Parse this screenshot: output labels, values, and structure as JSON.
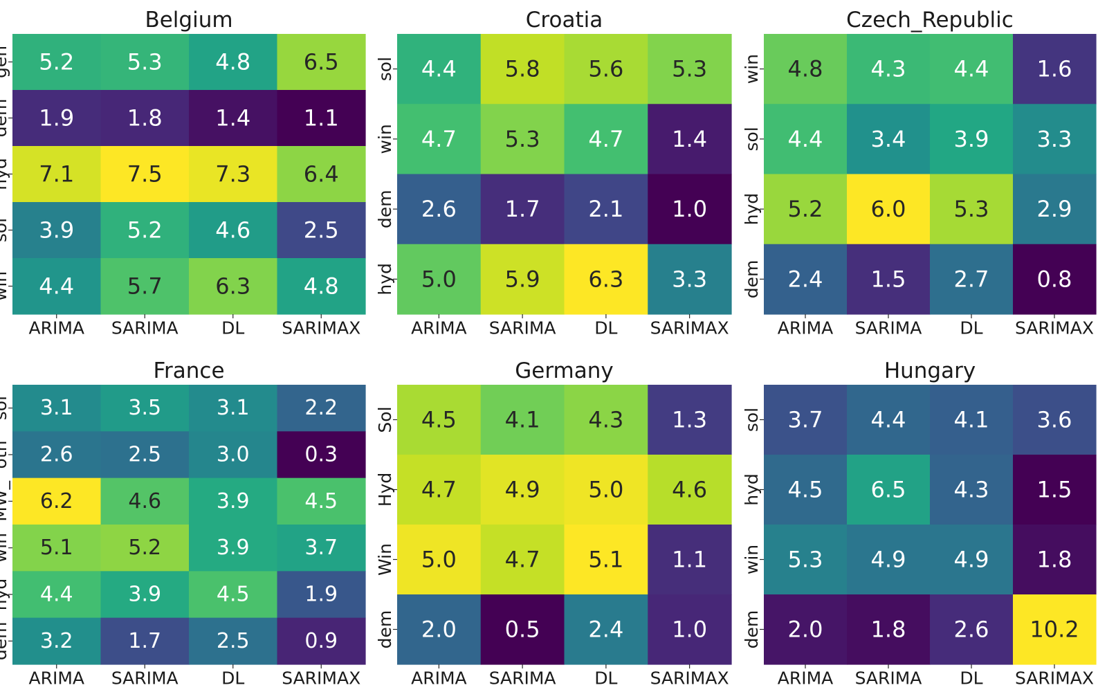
{
  "chart_data": [
    {
      "type": "heatmap",
      "title": "Belgium",
      "x_categories": [
        "ARIMA",
        "SARIMA",
        "DL",
        "SARIMAX"
      ],
      "y_categories": [
        "gen",
        "dem",
        "hyd",
        "sol",
        "win"
      ],
      "values": [
        [
          5.2,
          5.3,
          4.8,
          6.5
        ],
        [
          1.9,
          1.8,
          1.4,
          1.1
        ],
        [
          7.1,
          7.5,
          7.3,
          6.4
        ],
        [
          3.9,
          5.2,
          4.6,
          2.5
        ],
        [
          4.4,
          5.7,
          6.3,
          4.8
        ]
      ],
      "colormap": "viridis",
      "value_format": "0.1f"
    },
    {
      "type": "heatmap",
      "title": "Croatia",
      "x_categories": [
        "ARIMA",
        "SARIMA",
        "DL",
        "SARIMAX"
      ],
      "y_categories": [
        "sol",
        "win",
        "dem",
        "hyd"
      ],
      "values": [
        [
          4.4,
          5.8,
          5.6,
          5.3
        ],
        [
          4.7,
          5.3,
          4.7,
          1.4
        ],
        [
          2.6,
          1.7,
          2.1,
          1.0
        ],
        [
          5.0,
          5.9,
          6.3,
          3.3
        ]
      ],
      "colormap": "viridis",
      "value_format": "0.1f"
    },
    {
      "type": "heatmap",
      "title": "Czech_Republic",
      "x_categories": [
        "ARIMA",
        "SARIMA",
        "DL",
        "SARIMAX"
      ],
      "y_categories": [
        "win",
        "sol",
        "hyd",
        "dem"
      ],
      "values": [
        [
          4.8,
          4.3,
          4.4,
          1.6
        ],
        [
          4.4,
          3.4,
          3.9,
          3.3
        ],
        [
          5.2,
          6.0,
          5.3,
          2.9
        ],
        [
          2.4,
          1.5,
          2.7,
          0.8
        ]
      ],
      "colormap": "viridis",
      "value_format": "0.1f"
    },
    {
      "type": "heatmap",
      "title": "France",
      "x_categories": [
        "ARIMA",
        "SARIMA",
        "DL",
        "SARIMAX"
      ],
      "y_categories": [
        "sol",
        "oth",
        "MW_",
        "win",
        "hyd",
        "dem"
      ],
      "values": [
        [
          3.1,
          3.5,
          3.1,
          2.2
        ],
        [
          2.6,
          2.5,
          3.0,
          0.3
        ],
        [
          6.2,
          4.6,
          3.9,
          4.5
        ],
        [
          5.1,
          5.2,
          3.9,
          3.7
        ],
        [
          4.4,
          3.9,
          4.5,
          1.9
        ],
        [
          3.2,
          1.7,
          2.5,
          0.9
        ]
      ],
      "colormap": "viridis",
      "value_format": "0.1f"
    },
    {
      "type": "heatmap",
      "title": "Germany",
      "x_categories": [
        "ARIMA",
        "SARIMA",
        "DL",
        "SARIMAX"
      ],
      "y_categories": [
        "Sol",
        "Hyd",
        "Win",
        "dem"
      ],
      "values": [
        [
          4.5,
          4.1,
          4.3,
          1.3
        ],
        [
          4.7,
          4.9,
          5.0,
          4.6
        ],
        [
          5.0,
          4.7,
          5.1,
          1.1
        ],
        [
          2.0,
          0.5,
          2.4,
          1.0
        ]
      ],
      "colormap": "viridis",
      "value_format": "0.1f"
    },
    {
      "type": "heatmap",
      "title": "Hungary",
      "x_categories": [
        "ARIMA",
        "SARIMA",
        "DL",
        "SARIMAX"
      ],
      "y_categories": [
        "sol",
        "hyd",
        "win",
        "dem"
      ],
      "values": [
        [
          3.7,
          4.4,
          4.1,
          3.6
        ],
        [
          4.5,
          6.5,
          4.3,
          1.5
        ],
        [
          5.3,
          4.9,
          4.9,
          1.8
        ],
        [
          2.0,
          1.8,
          2.6,
          10.2
        ]
      ],
      "colormap": "viridis",
      "value_format": "0.1f"
    }
  ]
}
